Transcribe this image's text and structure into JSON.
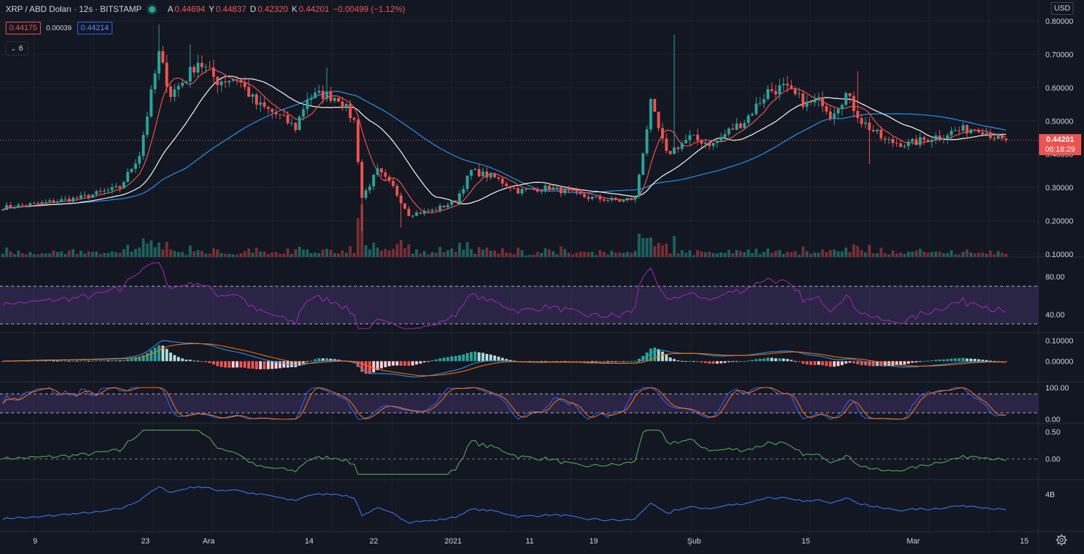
{
  "header": {
    "symbol": "XRP / ABD Doları · 12s · BITSTAMP",
    "ohlc": [
      {
        "label": "A",
        "value": "0.44694"
      },
      {
        "label": "Y",
        "value": "0.44837"
      },
      {
        "label": "D",
        "value": "0.42320"
      },
      {
        "label": "K",
        "value": "0.44201"
      }
    ],
    "change": "−0.00499 (−1.12%)",
    "bid": "0.44175",
    "spread": "0.00039",
    "ask": "0.44214",
    "collapse_count": "6",
    "currency": "USD",
    "last_price": "0.44201",
    "countdown": "06:18:29"
  },
  "colors": {
    "background": "#131722",
    "up": "#26a69a",
    "down": "#ef5350",
    "ma_fast": "#ef5350",
    "ma_mid": "#ffffff",
    "ma_slow": "#2196f3",
    "rsi": "#9c27b0",
    "macd": "#2196f3",
    "macd_signal": "#ff6d00",
    "stoch_k": "#2962ff",
    "stoch_d": "#ff6d00",
    "osc": "#4caf50",
    "obv": "#3179f5"
  },
  "chart_data": [
    {
      "type": "candlestick",
      "pane": "price",
      "yticks": [
        "0.80000",
        "0.70000",
        "0.60000",
        "0.50000",
        "0.40000",
        "0.30000",
        "0.20000",
        "0.10000"
      ],
      "ylim": [
        0.1,
        0.8
      ],
      "xticks": [
        "9",
        "23",
        "Ara",
        "14",
        "22",
        "2021",
        "11",
        "19",
        "Şub",
        "15",
        "Mar",
        "15"
      ],
      "anchors": [
        [
          0,
          0.24
        ],
        [
          8,
          0.25
        ],
        [
          20,
          0.27
        ],
        [
          30,
          0.3
        ],
        [
          35,
          0.4
        ],
        [
          40,
          0.7
        ],
        [
          43,
          0.58
        ],
        [
          47,
          0.63
        ],
        [
          50,
          0.68
        ],
        [
          55,
          0.62
        ],
        [
          60,
          0.63
        ],
        [
          65,
          0.55
        ],
        [
          70,
          0.52
        ],
        [
          75,
          0.48
        ],
        [
          78,
          0.57
        ],
        [
          82,
          0.58
        ],
        [
          86,
          0.57
        ],
        [
          90,
          0.5
        ],
        [
          92,
          0.27
        ],
        [
          96,
          0.35
        ],
        [
          100,
          0.3
        ],
        [
          104,
          0.22
        ],
        [
          110,
          0.23
        ],
        [
          116,
          0.26
        ],
        [
          120,
          0.35
        ],
        [
          126,
          0.33
        ],
        [
          132,
          0.29
        ],
        [
          140,
          0.3
        ],
        [
          150,
          0.27
        ],
        [
          158,
          0.26
        ],
        [
          162,
          0.27
        ],
        [
          166,
          0.55
        ],
        [
          170,
          0.4
        ],
        [
          176,
          0.45
        ],
        [
          182,
          0.43
        ],
        [
          186,
          0.47
        ],
        [
          190,
          0.5
        ],
        [
          196,
          0.59
        ],
        [
          200,
          0.6
        ],
        [
          206,
          0.55
        ],
        [
          210,
          0.56
        ],
        [
          212,
          0.52
        ],
        [
          216,
          0.58
        ],
        [
          220,
          0.5
        ],
        [
          226,
          0.44
        ],
        [
          232,
          0.43
        ],
        [
          238,
          0.45
        ],
        [
          244,
          0.47
        ],
        [
          250,
          0.48
        ],
        [
          256,
          0.44
        ]
      ],
      "last": 0.44201
    },
    {
      "type": "line",
      "pane": "rsi",
      "yticks": [
        "80.00",
        "40.00"
      ],
      "ylim": [
        25,
        95
      ],
      "band": [
        30,
        70
      ]
    },
    {
      "type": "line",
      "pane": "macd",
      "yticks": [
        "0.10000",
        "0.00000"
      ],
      "ylim": [
        -0.08,
        0.11
      ]
    },
    {
      "type": "line",
      "pane": "stoch",
      "yticks": [
        "100.00",
        "0.00"
      ],
      "ylim": [
        0,
        100
      ],
      "band": [
        20,
        80
      ]
    },
    {
      "type": "line",
      "pane": "oscillator",
      "yticks": [
        "0.50",
        "0.00"
      ],
      "ylim": [
        -0.3,
        0.55
      ]
    },
    {
      "type": "line",
      "pane": "obv",
      "yticks": [
        "4B"
      ]
    }
  ]
}
